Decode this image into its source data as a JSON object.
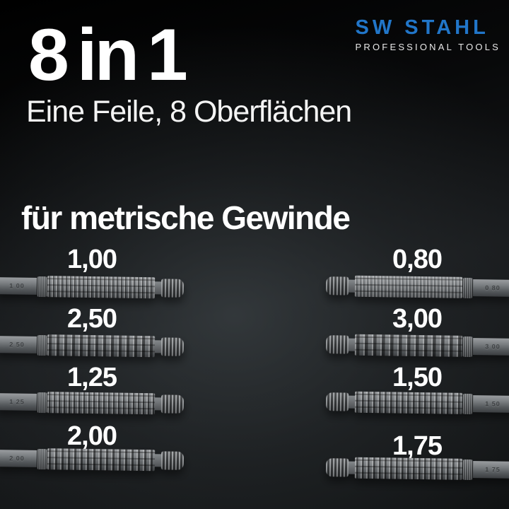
{
  "brand": {
    "name": "SW STAHL",
    "tagline": "PROFESSIONAL TOOLS",
    "brand_color": "#2176c9"
  },
  "headline": {
    "title": "8 in 1",
    "subtitle": "Eine Feile, 8 Oberflächen"
  },
  "section_heading": "für metrische Gewinde",
  "files": {
    "left": [
      {
        "label": "1,00",
        "stamp": "1 00"
      },
      {
        "label": "2,50",
        "stamp": "2 50"
      },
      {
        "label": "1,25",
        "stamp": "1 25"
      },
      {
        "label": "2,00",
        "stamp": "2 00"
      }
    ],
    "right": [
      {
        "label": "0,80",
        "stamp": "0 80"
      },
      {
        "label": "3,00",
        "stamp": "3 00"
      },
      {
        "label": "1,50",
        "stamp": "1 50"
      },
      {
        "label": "1,75",
        "stamp": "1 75"
      }
    ]
  }
}
